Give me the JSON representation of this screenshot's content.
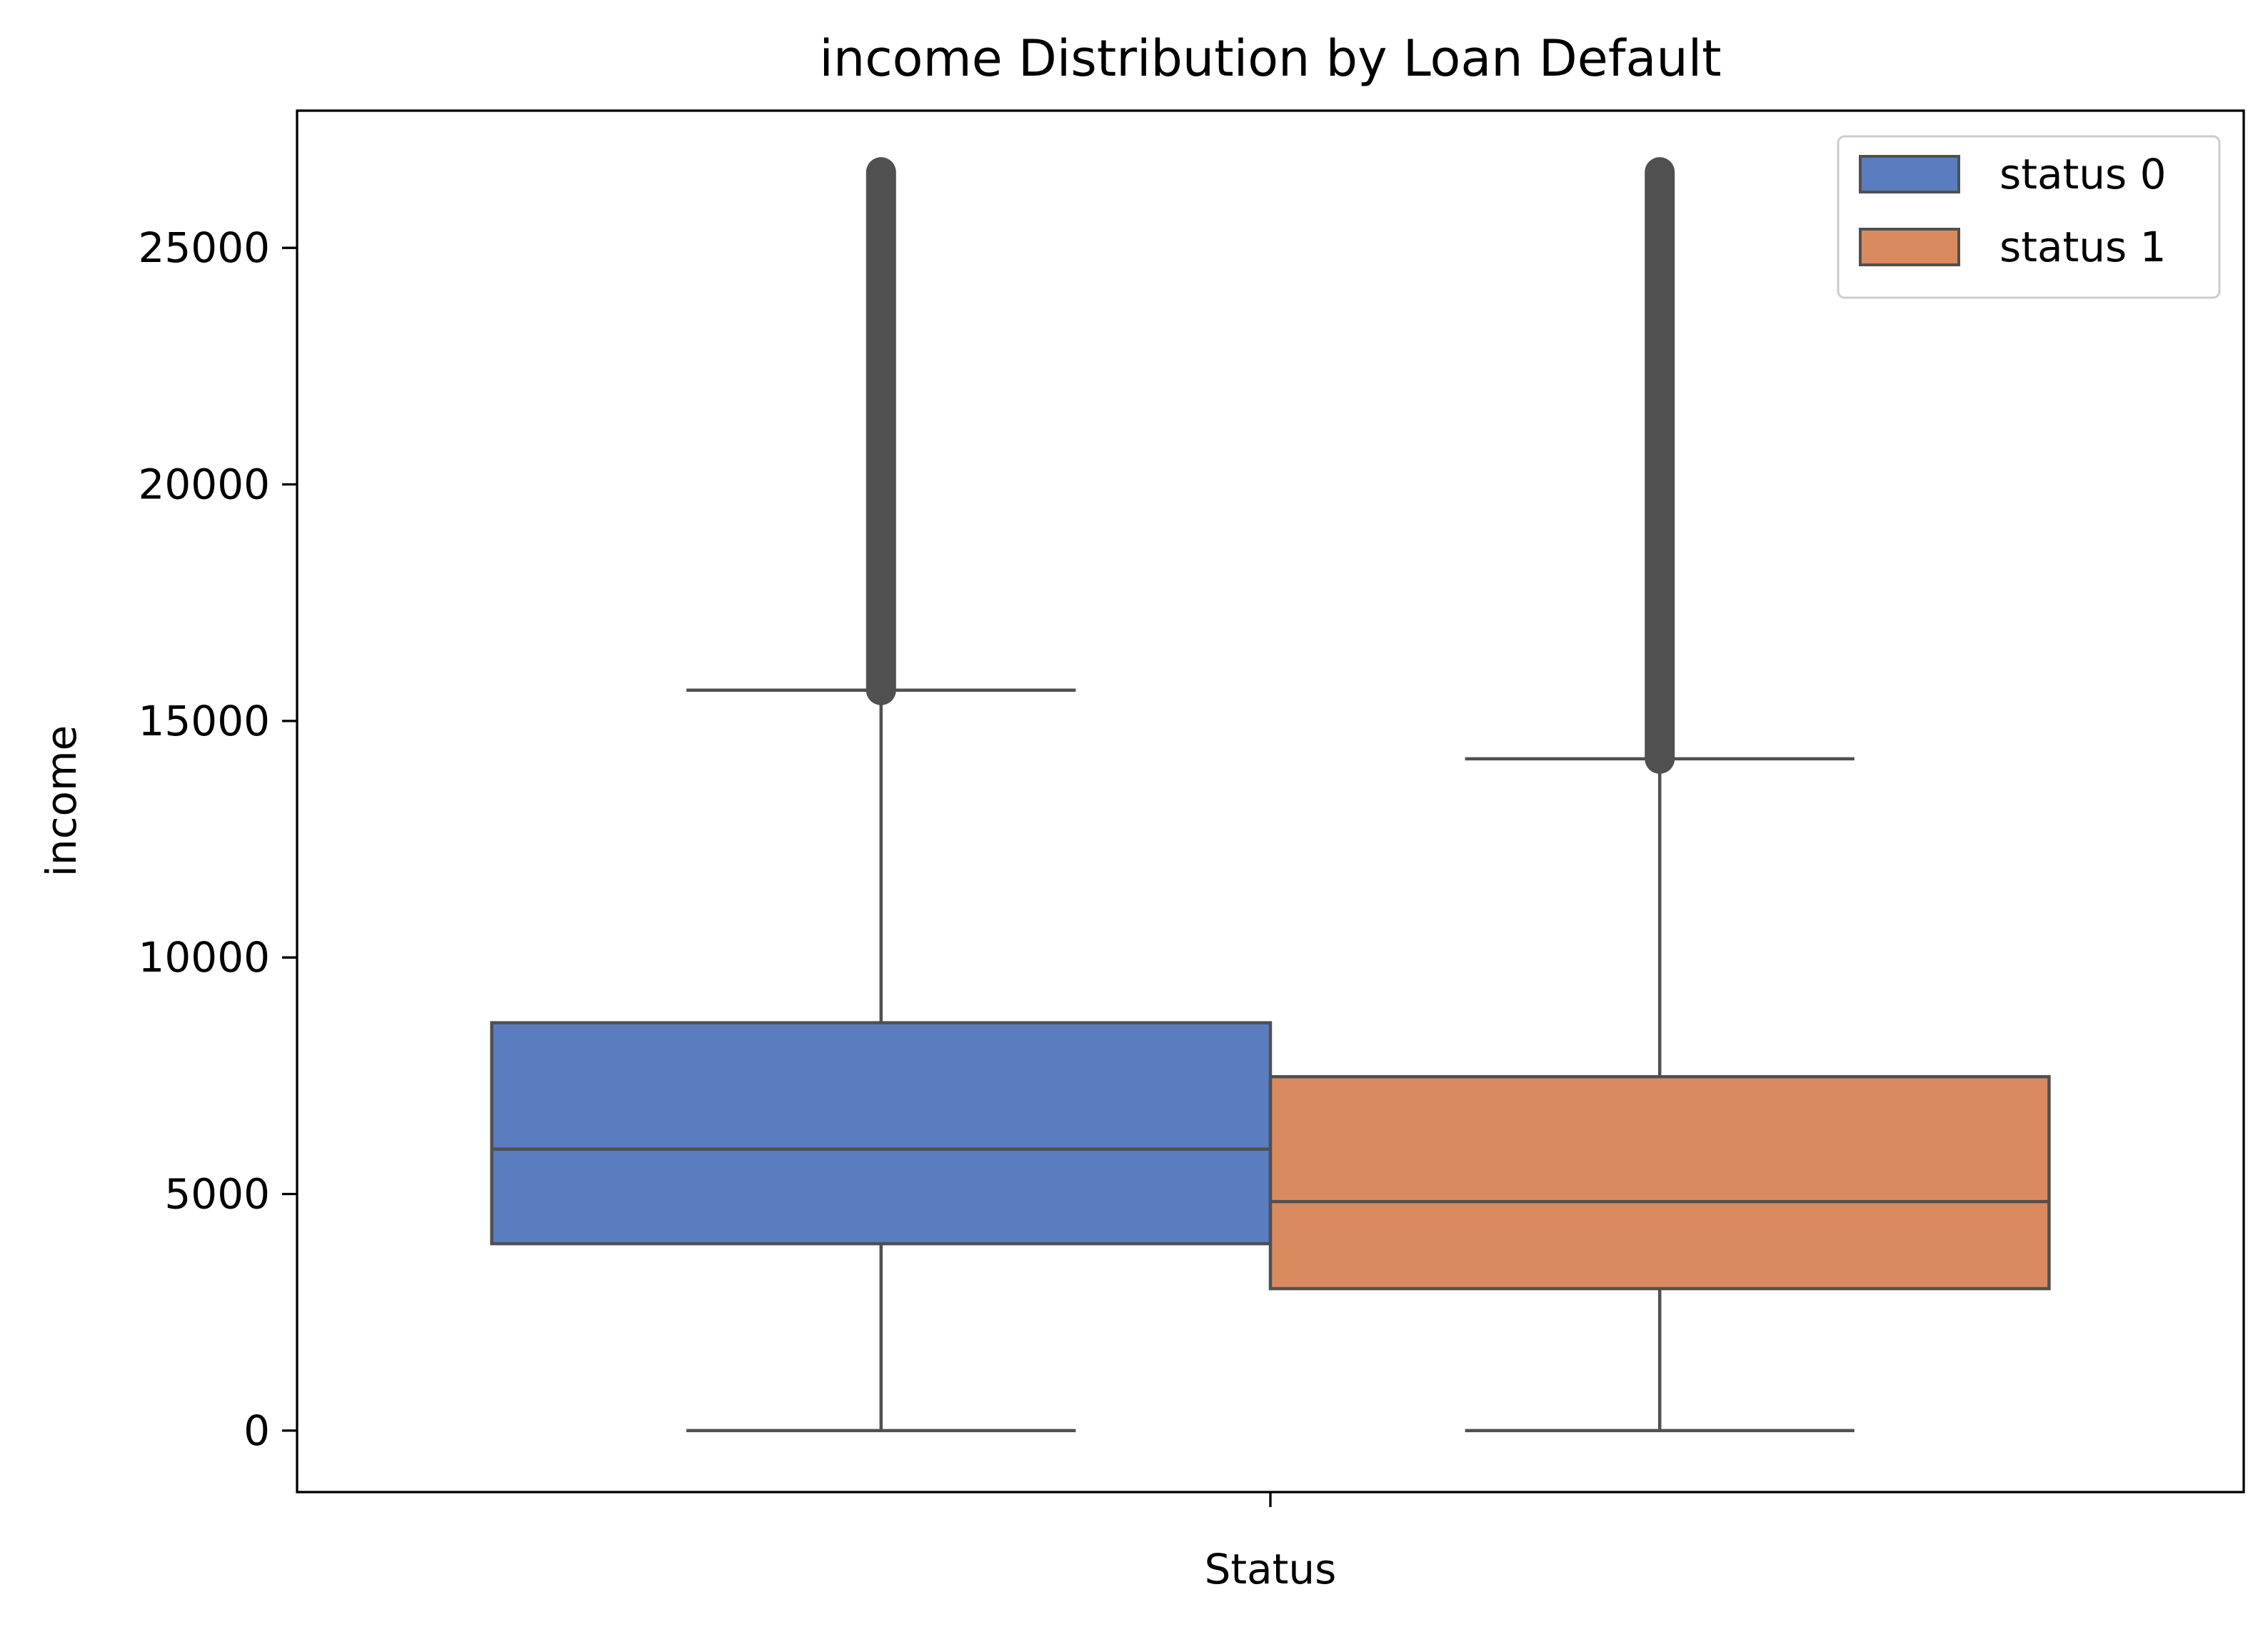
{
  "chart_data": {
    "type": "box",
    "title": "income Distribution by Loan Default",
    "xlabel": "Status",
    "ylabel": "income",
    "ylim": [
      -1300,
      27900
    ],
    "yticks": [
      0,
      5000,
      10000,
      15000,
      20000,
      25000
    ],
    "xtick": "",
    "grid": false,
    "legend_position": "top-right",
    "series": [
      {
        "name": "status 0",
        "color": "#5a7dc0",
        "whisker_low": 0,
        "q1": 3950,
        "median": 5950,
        "q3": 8620,
        "whisker_high": 15650,
        "outliers_min": 15650,
        "outliers_max": 26600
      },
      {
        "name": "status 1",
        "color": "#d98b5f",
        "whisker_low": 0,
        "q1": 3000,
        "median": 4840,
        "q3": 7480,
        "whisker_high": 14200,
        "outliers_min": 14200,
        "outliers_max": 26600
      }
    ],
    "edge_color": "#505050"
  }
}
